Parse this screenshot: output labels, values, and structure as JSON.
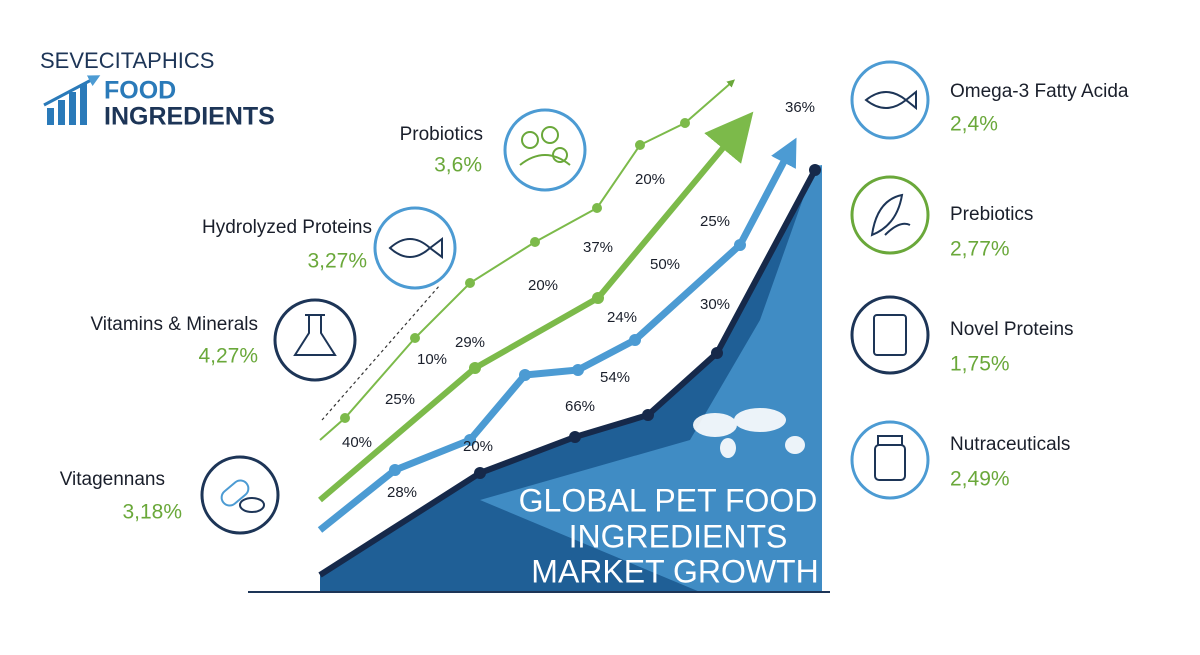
{
  "logo": {
    "brand": "SEVECITAPHICS",
    "line1": "FOOD",
    "line2": "INGREDIENTS"
  },
  "title": {
    "line1": "GLOBAL PET FOOD",
    "line2": "INGREDIENTS",
    "line3": "MARKET GROWTH"
  },
  "left_items": [
    {
      "name": "Probiotics",
      "value": "3,6%"
    },
    {
      "name": "Hydrolyzed Proteins",
      "value": "3,27%"
    },
    {
      "name": "Vitamins & Minerals",
      "value": "4,27%"
    },
    {
      "name": "Vitagennans",
      "value": "3,18%"
    }
  ],
  "right_items": [
    {
      "name": "Omega-3 Fatty Acida",
      "value": "2,4%"
    },
    {
      "name": "Prebiotics",
      "value": "2,77%"
    },
    {
      "name": "Novel Proteins",
      "value": "1,75%"
    },
    {
      "name": "Nutraceuticals",
      "value": "2,49%"
    }
  ],
  "chart_labels": [
    "36%",
    "20%",
    "37%",
    "25%",
    "20%",
    "50%",
    "29%",
    "10%",
    "24%",
    "30%",
    "25%",
    "54%",
    "66%",
    "40%",
    "20%",
    "28%"
  ]
}
